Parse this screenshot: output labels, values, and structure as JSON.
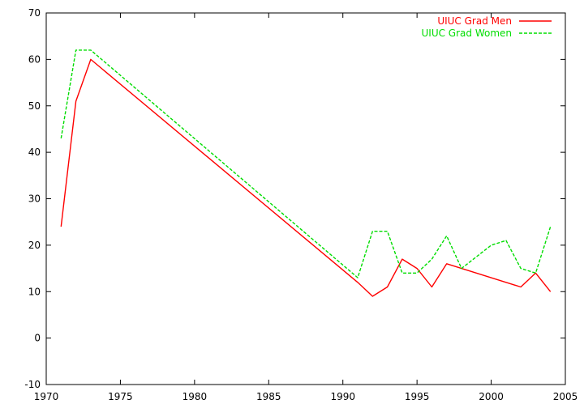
{
  "chart_data": {
    "type": "line",
    "title": "",
    "xlabel": "",
    "ylabel": "",
    "xlim": [
      1970,
      2005
    ],
    "ylim": [
      -10,
      70
    ],
    "xticks": [
      1970,
      1975,
      1980,
      1985,
      1990,
      1995,
      2000,
      2005
    ],
    "yticks": [
      -10,
      0,
      10,
      20,
      30,
      40,
      50,
      60,
      70
    ],
    "grid": false,
    "legend_position": "top-right",
    "series": [
      {
        "name": "UIUC Grad Men",
        "color": "#ff0000",
        "dash": "solid",
        "x": [
          1971,
          1972,
          1973,
          1991,
          1992,
          1993,
          1994,
          1995,
          1996,
          1997,
          2002,
          2003,
          2004
        ],
        "y": [
          24,
          51,
          60,
          12,
          9,
          11,
          17,
          15,
          11,
          16,
          11,
          14,
          10
        ]
      },
      {
        "name": "UIUC Grad Women",
        "color": "#00dd00",
        "dash": "dashed",
        "x": [
          1971,
          1972,
          1973,
          1991,
          1992,
          1993,
          1994,
          1995,
          1996,
          1997,
          1998,
          2000,
          2001,
          2002,
          2003,
          2004
        ],
        "y": [
          43,
          62,
          62,
          13,
          23,
          23,
          14,
          14,
          17,
          22,
          15,
          20,
          21,
          15,
          14,
          24
        ]
      }
    ]
  }
}
